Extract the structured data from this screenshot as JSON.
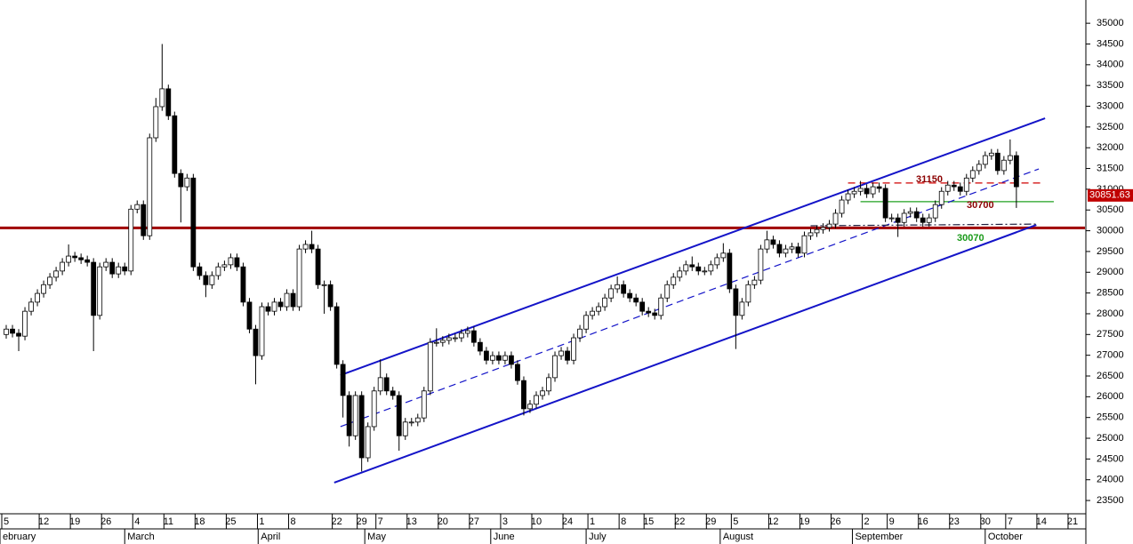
{
  "chart_data": {
    "type": "candlestick",
    "xlim": [
      -1,
      173
    ],
    "ylim": [
      23180,
      35560
    ],
    "yticks": [
      23500,
      24000,
      24500,
      25000,
      25500,
      26000,
      26500,
      27000,
      27500,
      28000,
      28500,
      29000,
      29500,
      30000,
      30500,
      31000,
      31500,
      32000,
      32500,
      33000,
      33500,
      34000,
      34500,
      35000
    ],
    "xticks": [
      {
        "value": 0,
        "label": "5"
      },
      {
        "value": 6,
        "label": "12"
      },
      {
        "value": 11,
        "label": "19"
      },
      {
        "value": 16,
        "label": "26"
      },
      {
        "value": 21,
        "label": "4"
      },
      {
        "value": 26,
        "label": "11"
      },
      {
        "value": 31,
        "label": "18"
      },
      {
        "value": 36,
        "label": "25"
      },
      {
        "value": 41,
        "label": "1"
      },
      {
        "value": 46,
        "label": "8"
      },
      {
        "value": 53,
        "label": "22"
      },
      {
        "value": 57,
        "label": "29"
      },
      {
        "value": 60,
        "label": "7"
      },
      {
        "value": 65,
        "label": "13"
      },
      {
        "value": 70,
        "label": "20"
      },
      {
        "value": 75,
        "label": "27"
      },
      {
        "value": 80,
        "label": "3"
      },
      {
        "value": 85,
        "label": "10"
      },
      {
        "value": 90,
        "label": "24"
      },
      {
        "value": 94,
        "label": "1"
      },
      {
        "value": 99,
        "label": "8"
      },
      {
        "value": 103,
        "label": "15"
      },
      {
        "value": 108,
        "label": "22"
      },
      {
        "value": 113,
        "label": "29"
      },
      {
        "value": 117,
        "label": "5"
      },
      {
        "value": 123,
        "label": "12"
      },
      {
        "value": 128,
        "label": "19"
      },
      {
        "value": 133,
        "label": "26"
      },
      {
        "value": 138,
        "label": "2"
      },
      {
        "value": 142,
        "label": "9"
      },
      {
        "value": 147,
        "label": "16"
      },
      {
        "value": 152,
        "label": "23"
      },
      {
        "value": 157,
        "label": "30"
      },
      {
        "value": 161,
        "label": "7"
      },
      {
        "value": 166,
        "label": "14"
      },
      {
        "value": 171,
        "label": "21"
      }
    ],
    "months": [
      {
        "value": -1,
        "label": "ebruary"
      },
      {
        "value": 19,
        "label": "March"
      },
      {
        "value": 40.4,
        "label": "April"
      },
      {
        "value": 57.5,
        "label": "May"
      },
      {
        "value": 77.7,
        "label": "June"
      },
      {
        "value": 93,
        "label": "July"
      },
      {
        "value": 114.5,
        "label": "August"
      },
      {
        "value": 135.7,
        "label": "September"
      },
      {
        "value": 157,
        "label": "October"
      }
    ],
    "open": [
      27500,
      27630,
      27530,
      27460,
      28060,
      28280,
      28490,
      28700,
      28880,
      29030,
      29240,
      29390,
      29350,
      29300,
      29240,
      27960,
      29130,
      29240,
      28960,
      29130,
      29030,
      30520,
      30630,
      29880,
      32240,
      32990,
      33420,
      32770,
      31380,
      31060,
      31270,
      29130,
      28920,
      28700,
      28920,
      29130,
      29180,
      29350,
      29130,
      28280,
      27630,
      26990,
      28170,
      28060,
      28280,
      28170,
      28490,
      28170,
      29560,
      29670,
      29560,
      28700,
      28700,
      28170,
      26780,
      26030,
      25060,
      26030,
      24530,
      25280,
      26140,
      26460,
      26140,
      26030,
      25060,
      25390,
      25390,
      25490,
      26140,
      27310,
      27310,
      27360,
      27420,
      27420,
      27530,
      27590,
      27310,
      27100,
      26880,
      26990,
      26880,
      26990,
      26780,
      26390,
      25710,
      25820,
      26030,
      26140,
      26460,
      26990,
      27100,
      26880,
      27420,
      27630,
      27960,
      28060,
      28170,
      28380,
      28600,
      28700,
      28490,
      28380,
      28280,
      28060,
      28020,
      27960,
      28380,
      28700,
      28880,
      29030,
      29180,
      29130,
      29030,
      29030,
      29180,
      29350,
      29460,
      28600,
      27960,
      28280,
      28700,
      28810,
      29560,
      29780,
      29670,
      29460,
      29560,
      29610,
      29460,
      29880,
      29950,
      30030,
      30080,
      30160,
      30420,
      30740,
      30890,
      30950,
      31020,
      30890,
      31060,
      31020,
      30310,
      30310,
      30200,
      30420,
      30460,
      30310,
      30200,
      30310,
      30630,
      30950,
      31100,
      31060,
      30950,
      31270,
      31450,
      31600,
      31810,
      31870,
      31450,
      31700,
      31810
    ],
    "high": [
      27730,
      27730,
      27630,
      28160,
      28380,
      28590,
      28800,
      28980,
      29130,
      29340,
      29670,
      29490,
      29450,
      29400,
      29340,
      29230,
      29340,
      29340,
      29230,
      29230,
      30620,
      30730,
      30730,
      32340,
      33200,
      34500,
      33520,
      32870,
      31480,
      31370,
      31370,
      29230,
      29020,
      29020,
      29230,
      29280,
      29450,
      29450,
      29230,
      28380,
      27730,
      28270,
      28270,
      28380,
      28380,
      28590,
      28590,
      29660,
      29770,
      30000,
      29660,
      28800,
      28800,
      28270,
      26880,
      26130,
      26130,
      26130,
      25380,
      26240,
      26900,
      26560,
      26240,
      26130,
      25490,
      25490,
      25590,
      26240,
      27410,
      27650,
      27460,
      27520,
      27520,
      27630,
      27690,
      27690,
      27410,
      27200,
      27090,
      27090,
      27090,
      27090,
      26880,
      26490,
      25920,
      26130,
      26240,
      26560,
      27090,
      27200,
      27200,
      27520,
      27730,
      28060,
      28160,
      28270,
      28480,
      28700,
      28900,
      28800,
      28590,
      28480,
      28380,
      28160,
      28120,
      28480,
      28800,
      28980,
      29130,
      29280,
      29380,
      29230,
      29130,
      29280,
      29450,
      29700,
      29560,
      28700,
      28380,
      28800,
      28910,
      29660,
      30000,
      29880,
      29770,
      29660,
      29710,
      29710,
      29980,
      30050,
      30130,
      30180,
      30260,
      30520,
      30840,
      30990,
      31050,
      31200,
      31120,
      31160,
      31160,
      31120,
      30410,
      30410,
      30520,
      30560,
      30560,
      30410,
      30410,
      30730,
      31050,
      31200,
      31200,
      31160,
      31370,
      31550,
      31700,
      31910,
      31970,
      31970,
      31800,
      32200,
      31910
    ],
    "low": [
      27400,
      27430,
      27100,
      27360,
      27960,
      28180,
      28390,
      28600,
      28780,
      28930,
      29140,
      29250,
      29200,
      29140,
      27100,
      27860,
      29030,
      28860,
      28860,
      28930,
      28930,
      30420,
      29780,
      29780,
      32140,
      32890,
      32670,
      31280,
      30200,
      30960,
      29030,
      28820,
      28400,
      28600,
      28820,
      29030,
      29080,
      29030,
      28180,
      27530,
      26300,
      26890,
      27960,
      27960,
      28070,
      28070,
      28070,
      28070,
      29460,
      29460,
      28600,
      28000,
      28070,
      26680,
      25500,
      24800,
      24960,
      24200,
      24430,
      25180,
      26040,
      26040,
      25930,
      24700,
      24960,
      25290,
      25290,
      25390,
      26040,
      27210,
      27210,
      27260,
      27320,
      27320,
      27430,
      27210,
      27000,
      26780,
      26780,
      26780,
      26780,
      26680,
      26290,
      25550,
      25610,
      25720,
      25930,
      26040,
      26360,
      26890,
      26780,
      26780,
      27320,
      27530,
      27860,
      27960,
      28070,
      28280,
      28500,
      28390,
      28280,
      28180,
      27960,
      27920,
      27860,
      27860,
      28280,
      28600,
      28780,
      28930,
      29030,
      28930,
      28930,
      28930,
      29080,
      29250,
      28500,
      27150,
      27860,
      28180,
      28600,
      28710,
      29460,
      29570,
      29360,
      29360,
      29460,
      29360,
      29360,
      29780,
      29850,
      29930,
      29980,
      30060,
      30320,
      30640,
      30790,
      30850,
      30790,
      30790,
      30920,
      30210,
      30210,
      29850,
      30100,
      30320,
      30210,
      30100,
      30100,
      30210,
      30530,
      30850,
      30960,
      30850,
      30850,
      31170,
      31350,
      31500,
      31710,
      31350,
      31350,
      31600,
      30550
    ],
    "close": [
      27630,
      27530,
      27460,
      28060,
      28280,
      28490,
      28700,
      28880,
      29030,
      29240,
      29390,
      29350,
      29300,
      29240,
      27960,
      29130,
      29240,
      28960,
      29130,
      29030,
      30520,
      30630,
      29880,
      32240,
      32990,
      33420,
      32770,
      31380,
      31060,
      31270,
      29130,
      28920,
      28700,
      28920,
      29130,
      29180,
      29350,
      29130,
      28280,
      27630,
      26990,
      28170,
      28060,
      28280,
      28170,
      28490,
      28170,
      29560,
      29670,
      29560,
      28700,
      28700,
      28170,
      26780,
      26030,
      25060,
      26030,
      24530,
      25280,
      26140,
      26460,
      26140,
      26030,
      25060,
      25390,
      25390,
      25490,
      26140,
      27310,
      27310,
      27360,
      27420,
      27420,
      27530,
      27590,
      27310,
      27100,
      26880,
      26990,
      26880,
      26990,
      26780,
      26390,
      25710,
      25820,
      26030,
      26140,
      26460,
      26990,
      27100,
      26880,
      27420,
      27630,
      27960,
      28060,
      28170,
      28380,
      28600,
      28700,
      28490,
      28380,
      28280,
      28060,
      28020,
      27960,
      28380,
      28700,
      28880,
      29030,
      29180,
      29130,
      29030,
      29030,
      29180,
      29350,
      29460,
      28600,
      27960,
      28280,
      28700,
      28810,
      29560,
      29780,
      29670,
      29460,
      29560,
      29610,
      29460,
      29880,
      29950,
      30030,
      30080,
      30160,
      30420,
      30740,
      30890,
      30950,
      31020,
      30890,
      31060,
      31020,
      30310,
      30310,
      30200,
      30420,
      30460,
      30310,
      30200,
      30310,
      30630,
      30950,
      31100,
      31060,
      30950,
      31270,
      31450,
      31600,
      31810,
      31870,
      31450,
      31700,
      31810,
      31060
    ],
    "up_color": "#ffffff",
    "down_color": "#000000",
    "lines": [
      {
        "x": [
          53.6,
          166.6
        ],
        "y": [
          26520,
          32710
        ],
        "color": "#1414c8",
        "style": "solid"
      },
      {
        "x": [
          52.6,
          165.2
        ],
        "y": [
          23930,
          30140
        ],
        "color": "#1414c8",
        "style": "solid"
      },
      {
        "x": [
          53.6,
          165.6
        ],
        "y": [
          25280,
          31490
        ],
        "color": "#1414c8",
        "style": "dashed"
      },
      {
        "x": [
          129,
          165.2
        ],
        "y": [
          30120,
          30160
        ],
        "color": "#202040",
        "style": "dashdot"
      }
    ],
    "levels": [
      {
        "value": 31150,
        "from": 135,
        "to": 166,
        "color": "#d00000",
        "style": "dashed",
        "label_color": "#8b0000"
      },
      {
        "value": 30700,
        "from": 137,
        "to": 168,
        "color": "#20a020",
        "style": "solid",
        "label_color": "#8b0000"
      },
      {
        "value": 30070,
        "from": -1,
        "to": 173,
        "color": "#a00000",
        "style": "thick",
        "label_color": "#1a9a1a"
      }
    ],
    "last": 30851.63,
    "last_color": "#c00000"
  }
}
